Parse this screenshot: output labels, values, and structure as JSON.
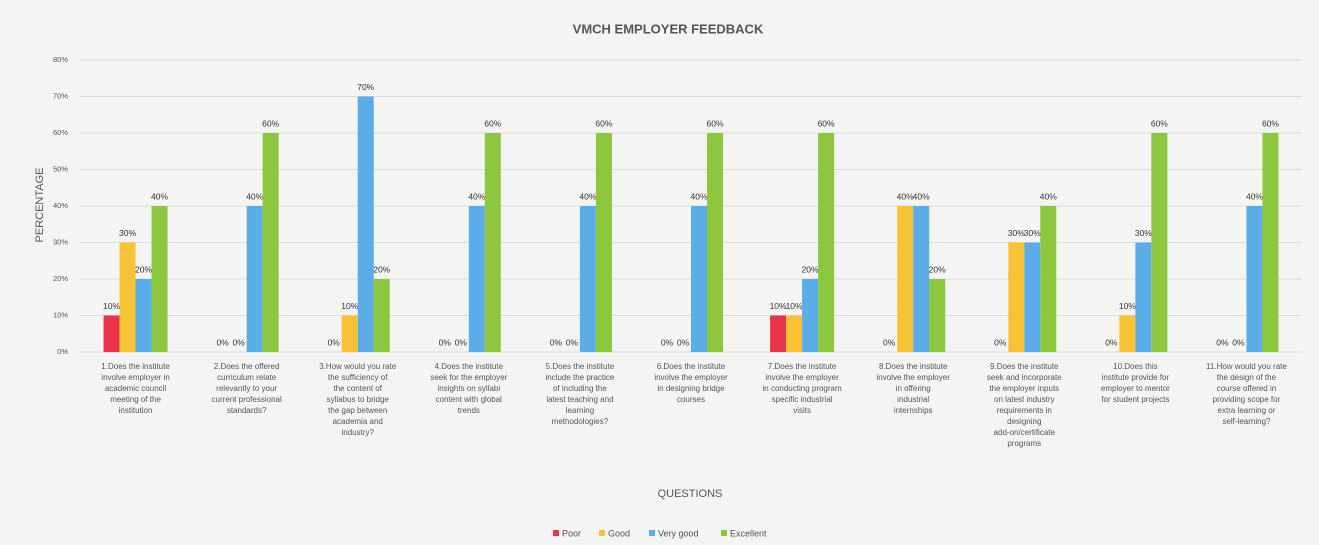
{
  "chart_data": {
    "type": "bar",
    "title": "VMCH EMPLOYER FEEDBACK",
    "x_label": "QUESTIONS",
    "y_label": "PERCENTAGE",
    "categories": [
      "1.Does the institute involve employer in academic council meeting of the institution",
      "2.Does the offered curriculum relate relevantly to your current professional standards?",
      "3.How would you rate the sufficiency of the content of syllabus to bridge the gap between academia and industry?",
      "4.Does the institute seek for the employer insights on syllabi content with global trends",
      "5.Does the institute include the practice of including the latest teaching and learning methodologies?",
      "6.Does the institute involve the employer in designing bridge courses",
      "7.Does the institute involve the employer in conducting program specific industrial visits",
      "8.Does the institute involve the employer in offering industrial internships",
      "9.Does the institute seek and incorporate the employer inputs on latest industry requirements in designing add-on/certificate programs",
      "10.Does this institute provide for employer to mentor for student projects",
      "11.How would you rate the design of the course offered in providing scope for extra learning or self-learning?"
    ],
    "series": [
      {
        "name": "Poor",
        "color": "#e8334a",
        "values": [
          10,
          0,
          0,
          0,
          0,
          0,
          10,
          0,
          0,
          0,
          0
        ],
        "value_labels": [
          "10%",
          "0%",
          "0%",
          "0%",
          "0%",
          "0%",
          "10%",
          "0%",
          "0%",
          "0%",
          "0%"
        ]
      },
      {
        "name": "Good",
        "color": "#f7c234",
        "values": [
          30,
          0,
          10,
          0,
          0,
          0,
          10,
          40,
          30,
          10,
          0
        ],
        "value_labels": [
          "30%",
          "0%",
          "10%",
          "0%",
          "0%",
          "0%",
          "10%",
          "40%",
          "30%",
          "10%",
          "0%"
        ]
      },
      {
        "name": "Very good",
        "color": "#5aade6",
        "values": [
          20,
          40,
          70,
          40,
          40,
          40,
          20,
          40,
          30,
          30,
          40
        ],
        "value_labels": [
          "20%",
          "40%",
          "70%",
          "40%",
          "40%",
          "40%",
          "20%",
          "40%",
          "30%",
          "30%",
          "40%"
        ]
      },
      {
        "name": "Excellent",
        "color": "#8dc63f",
        "values": [
          40,
          60,
          20,
          60,
          60,
          60,
          60,
          20,
          40,
          60,
          60
        ],
        "value_labels": [
          "40%",
          "60%",
          "20%",
          "60%",
          "60%",
          "60%",
          "60%",
          "20%",
          "40%",
          "60%",
          "60%"
        ]
      }
    ],
    "ylim": [
      0,
      80
    ],
    "yticks": [
      {
        "value": 0,
        "label": "0%"
      },
      {
        "value": 10,
        "label": "10%"
      },
      {
        "value": 20,
        "label": "20%"
      },
      {
        "value": 30,
        "label": "30%"
      },
      {
        "value": 40,
        "label": "40%"
      },
      {
        "value": 50,
        "label": "50%"
      },
      {
        "value": 60,
        "label": "60%"
      },
      {
        "value": 70,
        "label": "70%"
      },
      {
        "value": 80,
        "label": "80%"
      }
    ],
    "grid": true,
    "legend": "bottom"
  }
}
